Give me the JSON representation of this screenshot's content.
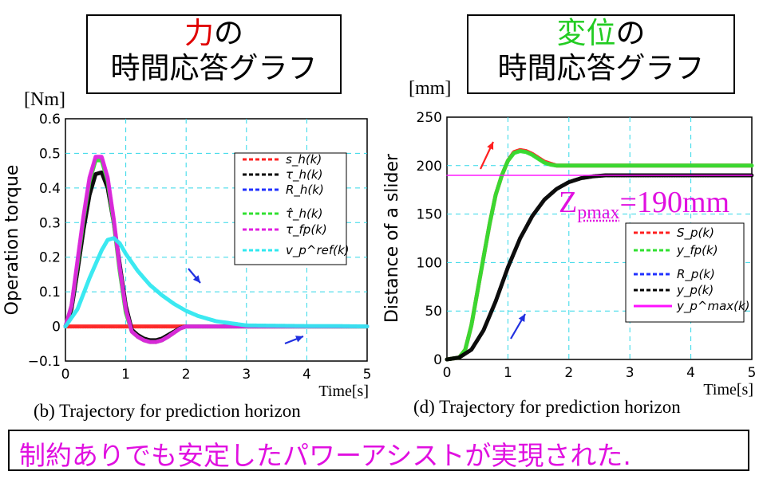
{
  "titles": {
    "left": {
      "highlight": "力",
      "highlight_color": "#e00000",
      "rest": "の",
      "line2": "時間応答グラフ"
    },
    "right": {
      "highlight": "変位",
      "highlight_color": "#22cc22",
      "rest": "の",
      "line2": "時間応答グラフ"
    }
  },
  "units": {
    "left": "[Nm]",
    "right": "[mm]"
  },
  "captions": {
    "left": "(b) Trajectory for prediction horizon",
    "right": "(d) Trajectory for prediction horizon"
  },
  "annotation_right": {
    "main": "Z",
    "sub": "pmax",
    "tail": "=190mm",
    "color": "#e010e0"
  },
  "footer": {
    "text": "制約ありでも安定したパワーアシストが実現された.",
    "color": "#e010e0"
  },
  "chart_data": [
    {
      "type": "line",
      "xlabel": "Time[s]",
      "ylabel": "Operation torque",
      "xlim": [
        0,
        5
      ],
      "ylim": [
        -0.1,
        0.6
      ],
      "x_ticks": [
        "0",
        "1",
        "2",
        "3",
        "4",
        "5"
      ],
      "y_ticks": [
        "−0.1",
        "0",
        "0.1",
        "0.2",
        "0.3",
        "0.4",
        "0.5",
        "0.6"
      ],
      "grid": true,
      "legend_position": "top-right",
      "series": [
        {
          "name": "s_h(k)",
          "color": "#ff2020",
          "x": [
            0,
            0.5,
            1,
            1.5,
            2
          ],
          "y": [
            0,
            0,
            0,
            0,
            0
          ]
        },
        {
          "name": "τ_h(k)",
          "color": "#000000",
          "x": [
            0,
            0.1,
            0.2,
            0.3,
            0.4,
            0.5,
            0.6,
            0.7,
            0.8,
            0.9,
            1.0,
            1.1,
            1.2,
            1.3,
            1.4,
            1.5,
            1.6,
            1.7,
            1.8,
            1.9,
            2.0,
            2.5,
            3,
            3.5,
            4,
            4.5,
            5
          ],
          "y": [
            0,
            0.05,
            0.16,
            0.28,
            0.38,
            0.44,
            0.445,
            0.4,
            0.3,
            0.18,
            0.06,
            -0.01,
            -0.025,
            -0.035,
            -0.04,
            -0.04,
            -0.035,
            -0.025,
            -0.015,
            -0.005,
            0,
            0,
            0,
            0,
            0,
            0,
            0
          ]
        },
        {
          "name": "R_h(k)",
          "color": "#2030ff",
          "x": [],
          "y": []
        },
        {
          "name": "τ̂_h(k)",
          "color": "#30e030",
          "x": [
            0,
            0.1,
            0.2,
            0.3,
            0.4,
            0.5,
            0.6,
            0.7,
            0.8,
            0.9,
            1.0,
            1.1,
            1.2,
            1.3,
            1.4,
            1.5,
            1.6,
            1.7,
            1.8,
            1.9,
            2.0,
            2.5,
            3,
            3.5,
            4,
            4.5,
            5
          ],
          "y": [
            0,
            0.06,
            0.18,
            0.31,
            0.42,
            0.48,
            0.48,
            0.42,
            0.3,
            0.16,
            0.04,
            -0.015,
            -0.03,
            -0.04,
            -0.045,
            -0.045,
            -0.04,
            -0.03,
            -0.018,
            -0.006,
            0,
            0,
            0,
            0,
            0,
            0,
            0
          ]
        },
        {
          "name": "τ_fp(k)",
          "color": "#e020e0",
          "x": [
            0,
            0.1,
            0.2,
            0.3,
            0.4,
            0.5,
            0.6,
            0.7,
            0.8,
            0.9,
            1.0,
            1.1,
            1.2,
            1.3,
            1.4,
            1.5,
            1.6,
            1.7,
            1.8,
            1.9,
            2.0,
            2.5,
            3,
            3.5,
            4,
            4.5,
            5
          ],
          "y": [
            0,
            0.06,
            0.19,
            0.32,
            0.43,
            0.49,
            0.49,
            0.43,
            0.31,
            0.17,
            0.05,
            -0.015,
            -0.03,
            -0.04,
            -0.045,
            -0.045,
            -0.04,
            -0.03,
            -0.018,
            -0.006,
            0,
            0,
            0,
            0,
            0,
            0,
            0
          ]
        },
        {
          "name": "v_p^ref(k)",
          "color": "#30e8f0",
          "x": [
            0,
            0.2,
            0.4,
            0.6,
            0.7,
            0.8,
            0.9,
            1.0,
            1.2,
            1.4,
            1.6,
            1.8,
            2.0,
            2.2,
            2.5,
            3,
            3.5,
            4,
            4.5,
            5
          ],
          "y": [
            0,
            0.05,
            0.14,
            0.22,
            0.25,
            0.255,
            0.24,
            0.21,
            0.16,
            0.12,
            0.09,
            0.065,
            0.045,
            0.03,
            0.015,
            0.003,
            0.002,
            0.001,
            0.001,
            0
          ]
        }
      ],
      "legend": [
        "s_h(k)",
        "τ_h(k)",
        "R_h(k)",
        "τ̂_h(k)",
        "τ_fp(k)",
        "v_p^ref(k)"
      ]
    },
    {
      "type": "line",
      "xlabel": "Time[s]",
      "ylabel": "Distance of a slider",
      "xlim": [
        0,
        5
      ],
      "ylim": [
        0,
        250
      ],
      "x_ticks": [
        "0",
        "1",
        "2",
        "3",
        "4",
        "5"
      ],
      "y_ticks": [
        "0",
        "50",
        "100",
        "150",
        "200",
        "250"
      ],
      "grid": true,
      "legend_position": "bottom-right",
      "series": [
        {
          "name": "S_p(k)",
          "color": "#ff2020",
          "x": [
            0,
            0.2,
            0.3,
            0.4,
            0.5,
            0.6,
            0.7,
            0.8,
            0.9,
            1.0,
            1.1,
            1.2,
            1.3,
            1.4,
            1.5,
            1.6,
            1.7,
            1.8,
            2.0,
            2.5,
            3,
            3.5,
            4,
            4.5,
            5
          ],
          "y": [
            0,
            2,
            10,
            35,
            70,
            105,
            140,
            170,
            190,
            205,
            214,
            216,
            215,
            212,
            208,
            204,
            202,
            200,
            200,
            200,
            200,
            200,
            200,
            200,
            200
          ]
        },
        {
          "name": "y_fp(k)",
          "color": "#30e030",
          "x": [
            0,
            0.2,
            0.3,
            0.4,
            0.5,
            0.6,
            0.7,
            0.8,
            0.9,
            1.0,
            1.1,
            1.2,
            1.3,
            1.4,
            1.5,
            1.6,
            1.7,
            1.8,
            2.0,
            2.5,
            3,
            3.5,
            4,
            4.5,
            5
          ],
          "y": [
            0,
            2,
            10,
            35,
            70,
            105,
            140,
            170,
            190,
            205,
            213,
            215,
            214,
            211,
            207,
            203,
            201,
            200,
            200,
            200,
            200,
            200,
            200,
            200,
            200
          ]
        },
        {
          "name": "R_p(k)",
          "color": "#2030ff",
          "x": [],
          "y": []
        },
        {
          "name": "y_p(k)",
          "color": "#000000",
          "x": [
            0,
            0.2,
            0.4,
            0.6,
            0.8,
            1.0,
            1.2,
            1.4,
            1.6,
            1.8,
            2.0,
            2.2,
            2.4,
            2.6,
            2.8,
            3.0,
            3.5,
            4,
            4.5,
            5
          ],
          "y": [
            0,
            2,
            10,
            30,
            60,
            95,
            125,
            148,
            165,
            176,
            183,
            187,
            189,
            190,
            190,
            190,
            190,
            190,
            190,
            190
          ]
        },
        {
          "name": "y_p^max(k)",
          "color": "#ff10ff",
          "x": [
            0,
            5
          ],
          "y": [
            190,
            190
          ]
        }
      ],
      "legend": [
        "S_p(k)",
        "y_fp(k)",
        "R_p(k)",
        "y_p(k)",
        "y_p^max(k)"
      ]
    }
  ]
}
